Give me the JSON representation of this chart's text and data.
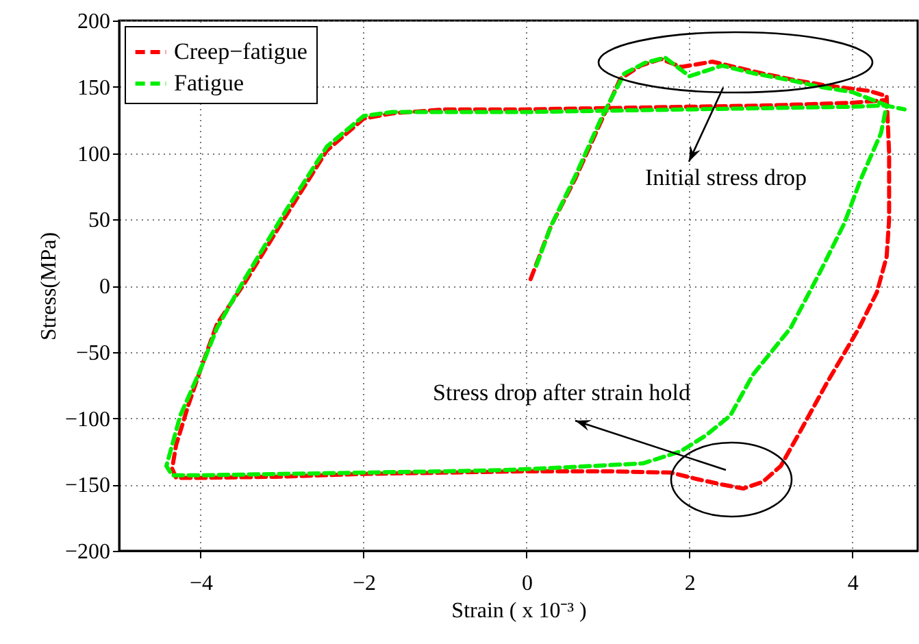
{
  "chart_data": {
    "type": "line",
    "xlabel": "Strain ( x 10⁻³ )",
    "ylabel": "Stress(MPa)",
    "xlim": [
      -5,
      4.8
    ],
    "ylim": [
      -200,
      200
    ],
    "xticks": [
      -4,
      -2,
      0,
      2,
      4
    ],
    "yticks": [
      -200,
      -150,
      -100,
      -50,
      0,
      50,
      100,
      150,
      200
    ],
    "grid": true,
    "legend": "top left",
    "series": [
      {
        "name": "Creep−fatigue",
        "color": "#ff0000",
        "line_style": "dashed",
        "x": [
          0.05,
          0.3,
          0.6,
          0.93,
          1.15,
          1.4,
          1.65,
          1.9,
          2.28,
          2.9,
          3.3,
          3.68,
          4.2,
          4.42,
          4.45,
          4.45,
          4.42,
          4.3,
          4.08,
          3.68,
          3.34,
          3.12,
          2.9,
          2.66,
          2.4,
          2.1,
          1.77,
          1.0,
          0,
          -1,
          -2,
          -3,
          -4,
          -4.3,
          -4.35,
          -4.3,
          -4.15,
          -4.0,
          -3.8,
          -3.46,
          -2.95,
          -2.45,
          -2.0,
          -1.65,
          -1,
          0,
          1,
          2,
          3,
          4,
          4.4
        ],
        "values": [
          5,
          45,
          81,
          126,
          156,
          166,
          171,
          165,
          169,
          160,
          155,
          151,
          147,
          143,
          100,
          50,
          22,
          -5,
          -32,
          -74,
          -112,
          -136,
          -148,
          -153,
          -150,
          -146,
          -141,
          -140,
          -140,
          -141,
          -142,
          -144,
          -145,
          -145,
          -138,
          -120,
          -90,
          -63,
          -29,
          2,
          53,
          102,
          126,
          130,
          133,
          133,
          134,
          135,
          136,
          138,
          140
        ]
      },
      {
        "name": "Fatigue",
        "color": "#00ee00",
        "line_style": "dashed",
        "x": [
          0.12,
          0.3,
          0.6,
          0.93,
          1.2,
          1.45,
          1.7,
          2.0,
          2.4,
          2.8,
          3.24,
          3.6,
          4.0,
          4.42,
          4.35,
          4.1,
          3.9,
          3.6,
          3.24,
          2.78,
          2.5,
          2.2,
          1.89,
          1.43,
          0.5,
          -0.25,
          -1,
          -2,
          -3,
          -4,
          -4.35,
          -4.42,
          -4.25,
          -4.0,
          -3.8,
          -3.46,
          -2.95,
          -2.45,
          -2.0,
          -1.65,
          -1,
          0,
          1,
          2,
          3,
          4,
          4.4,
          4.64
        ],
        "values": [
          15,
          45,
          83,
          128,
          160,
          168,
          172,
          158,
          166,
          160,
          155,
          150,
          146,
          136,
          115,
          80,
          47,
          10,
          -32,
          -67,
          -98,
          -113,
          -125,
          -134,
          -137,
          -139,
          -140,
          -141,
          -142,
          -143,
          -143,
          -136,
          -98,
          -63,
          -32,
          5,
          57,
          105,
          128,
          131,
          131,
          131,
          132,
          133,
          134,
          135,
          136,
          133
        ]
      }
    ],
    "annotations": [
      "Initial stress drop",
      "Stress drop after strain hold"
    ]
  }
}
